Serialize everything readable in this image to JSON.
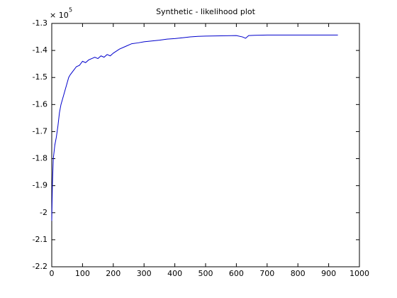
{
  "chart_data": {
    "type": "line",
    "title": "Synthetic - likelihood plot",
    "y_scale_label": "× 10",
    "y_scale_power": "5",
    "x": [
      0,
      2,
      5,
      8,
      10,
      15,
      20,
      25,
      30,
      35,
      40,
      45,
      50,
      55,
      60,
      70,
      80,
      90,
      100,
      110,
      120,
      130,
      140,
      150,
      160,
      170,
      180,
      190,
      200,
      220,
      240,
      260,
      280,
      300,
      325,
      350,
      375,
      400,
      425,
      450,
      475,
      500,
      550,
      600,
      620,
      630,
      640,
      660,
      700,
      800,
      900,
      930
    ],
    "series": [
      {
        "name": "likelihood",
        "color": "#0000cc",
        "values": [
          -2.03,
          -1.9,
          -1.8,
          -1.77,
          -1.75,
          -1.72,
          -1.68,
          -1.63,
          -1.6,
          -1.58,
          -1.56,
          -1.54,
          -1.52,
          -1.5,
          -1.49,
          -1.475,
          -1.46,
          -1.455,
          -1.44,
          -1.445,
          -1.435,
          -1.43,
          -1.425,
          -1.43,
          -1.42,
          -1.425,
          -1.415,
          -1.42,
          -1.41,
          -1.395,
          -1.385,
          -1.375,
          -1.372,
          -1.368,
          -1.365,
          -1.362,
          -1.358,
          -1.356,
          -1.353,
          -1.35,
          -1.348,
          -1.347,
          -1.346,
          -1.345,
          -1.35,
          -1.355,
          -1.345,
          -1.344,
          -1.343,
          -1.343,
          -1.343,
          -1.343
        ]
      }
    ],
    "xlim": [
      0,
      1000
    ],
    "xticks": [
      0,
      100,
      200,
      300,
      400,
      500,
      600,
      700,
      800,
      900,
      1000
    ],
    "ylim": [
      -2.2,
      -1.3
    ],
    "yticks": [
      -2.2,
      -2.1,
      -2,
      -1.9,
      -1.8,
      -1.7,
      -1.6,
      -1.5,
      -1.4,
      -1.3
    ],
    "grid": false
  }
}
